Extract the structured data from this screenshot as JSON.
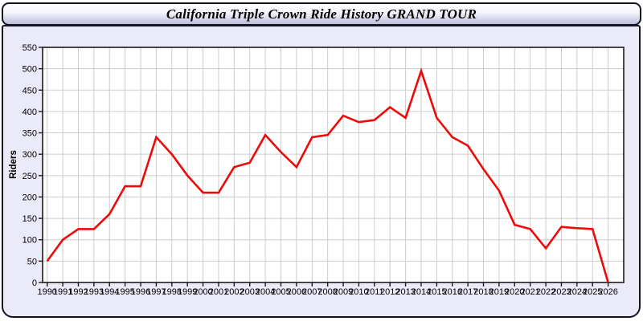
{
  "header": {
    "title": "California Triple Crown Ride History GRAND TOUR"
  },
  "chart_data": {
    "type": "line",
    "title": "California Triple Crown Ride History GRAND TOUR",
    "xlabel": "",
    "ylabel": "Riders",
    "legend_position": "none",
    "grid": true,
    "ylim": [
      0,
      550
    ],
    "x_axis_right_pad_years": 1,
    "y_ticks": [
      0,
      50,
      100,
      150,
      200,
      250,
      300,
      350,
      400,
      450,
      500,
      550
    ],
    "x": [
      1990,
      1991,
      1992,
      1993,
      1994,
      1995,
      1996,
      1997,
      1998,
      1999,
      2000,
      2001,
      2002,
      2003,
      2004,
      2005,
      2006,
      2007,
      2008,
      2009,
      2010,
      2011,
      2012,
      2013,
      2014,
      2015,
      2016,
      2017,
      2018,
      2019,
      2020,
      2021,
      2022,
      2023,
      2024,
      2025,
      2026
    ],
    "values": [
      50,
      100,
      125,
      125,
      160,
      225,
      225,
      340,
      300,
      250,
      210,
      210,
      270,
      280,
      345,
      305,
      270,
      340,
      345,
      390,
      375,
      380,
      410,
      385,
      495,
      385,
      340,
      320,
      265,
      215,
      135,
      125,
      80,
      130,
      127,
      125,
      0
    ],
    "colors": {
      "line": "#ee0a0a",
      "grid": "#cccccc",
      "plot_background": "#ffffff",
      "plot_border": "#1a1a1a",
      "panel_background": "#eaeaf8",
      "panel_border": "#14141e",
      "text": "#000000"
    }
  }
}
